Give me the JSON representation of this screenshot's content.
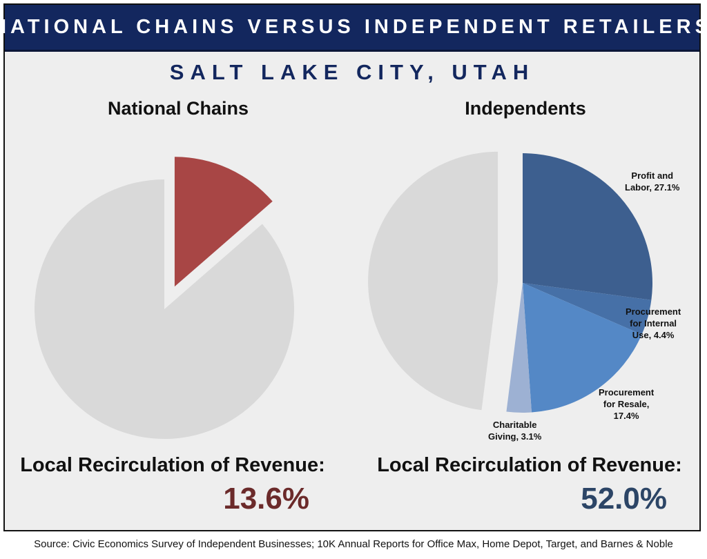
{
  "header": {
    "title": "NATIONAL CHAINS VERSUS INDEPENDENT RETAILERS",
    "subtitle": "SALT LAKE CITY, UTAH"
  },
  "colors": {
    "banner": "#13275e",
    "chains_value": "#6b2a2a",
    "independents_value": "#2c4566",
    "background": "#eeeeee"
  },
  "chart_data": [
    {
      "type": "pie",
      "title": "National Chains",
      "slices": [
        {
          "label": "",
          "value": 13.6,
          "color": "#a84645",
          "exploded": true
        },
        {
          "label": "",
          "value": 86.4,
          "color": "#d9d9d9",
          "exploded": false
        }
      ],
      "footer_label": "Local Recirculation of Revenue:",
      "footer_value": "13.6%"
    },
    {
      "type": "pie",
      "title": "Independents",
      "slices": [
        {
          "label": "Profit and Labor, 27.1%",
          "label_lines": [
            "Profit and",
            "Labor, 27.1%"
          ],
          "value": 27.1,
          "color": "#3d5f8f",
          "exploded": false
        },
        {
          "label": "Procurement for Internal Use, 4.4%",
          "label_lines": [
            "Procurement",
            "for Internal",
            "Use, 4.4%"
          ],
          "value": 4.4,
          "color": "#4670a7",
          "exploded": false
        },
        {
          "label": "Procurement for Resale, 17.4%",
          "label_lines": [
            "Procurement",
            "for Resale,",
            "17.4%"
          ],
          "value": 17.4,
          "color": "#5488c6",
          "exploded": false
        },
        {
          "label": "Charitable Giving, 3.1%",
          "label_lines": [
            "Charitable",
            "Giving, 3.1%"
          ],
          "value": 3.1,
          "color": "#9db1d3",
          "exploded": false
        },
        {
          "label": "",
          "label_lines": [],
          "value": 48.0,
          "color": "#d9d9d9",
          "exploded": true
        }
      ],
      "footer_label": "Local Recirculation of Revenue:",
      "footer_value": "52.0%"
    }
  ],
  "source": "Source:  Civic Economics Survey of Independent  Businesses; 10K Annual Reports for Office Max, Home Depot, Target, and Barnes & Noble"
}
